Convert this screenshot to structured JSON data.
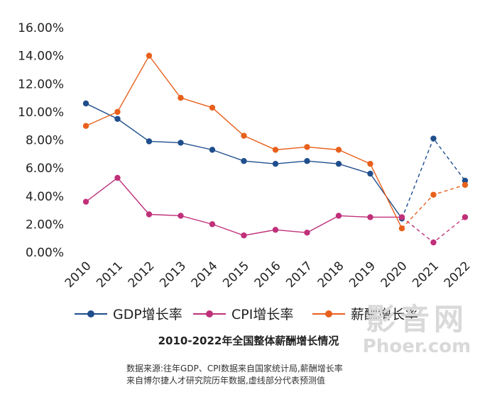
{
  "chart_data": {
    "type": "line",
    "title": "2010-2022年全国整体薪酬增长情况",
    "categories": [
      "2010",
      "2011",
      "2012",
      "2013",
      "2014",
      "2015",
      "2016",
      "2017",
      "2018",
      "2019",
      "2020",
      "2021",
      "2022"
    ],
    "ylim": [
      0,
      16
    ],
    "yticks": [
      "0.00%",
      "2.00%",
      "4.00%",
      "6.00%",
      "8.00%",
      "10.00%",
      "12.00%",
      "14.00%",
      "16.00%"
    ],
    "projected_from": "2020",
    "series": [
      {
        "name": "GDP增长率",
        "color": "#1f4e8c",
        "values": [
          10.6,
          9.5,
          7.9,
          7.8,
          7.3,
          6.5,
          6.3,
          6.5,
          6.3,
          5.6,
          2.4,
          8.1,
          5.1
        ]
      },
      {
        "name": "CPI增长率",
        "color": "#c0307a",
        "values": [
          3.6,
          5.3,
          2.7,
          2.6,
          2.0,
          1.2,
          1.6,
          1.4,
          2.6,
          2.5,
          2.5,
          0.7,
          2.5
        ]
      },
      {
        "name": "薪酬增长率",
        "color": "#e8601c",
        "values": [
          9.0,
          10.0,
          14.0,
          11.0,
          10.3,
          8.3,
          7.3,
          7.5,
          7.3,
          6.3,
          1.7,
          4.1,
          4.8
        ]
      }
    ]
  },
  "source_note": {
    "line1": "数据来源:往年GDP、CPI数据来自国家统计局,薪酬增长率",
    "line2": "来自博尔捷人才研究院历年数据,虚线部分代表预测值"
  },
  "watermark": {
    "cn": "影音网",
    "en": "Phoer.com"
  }
}
